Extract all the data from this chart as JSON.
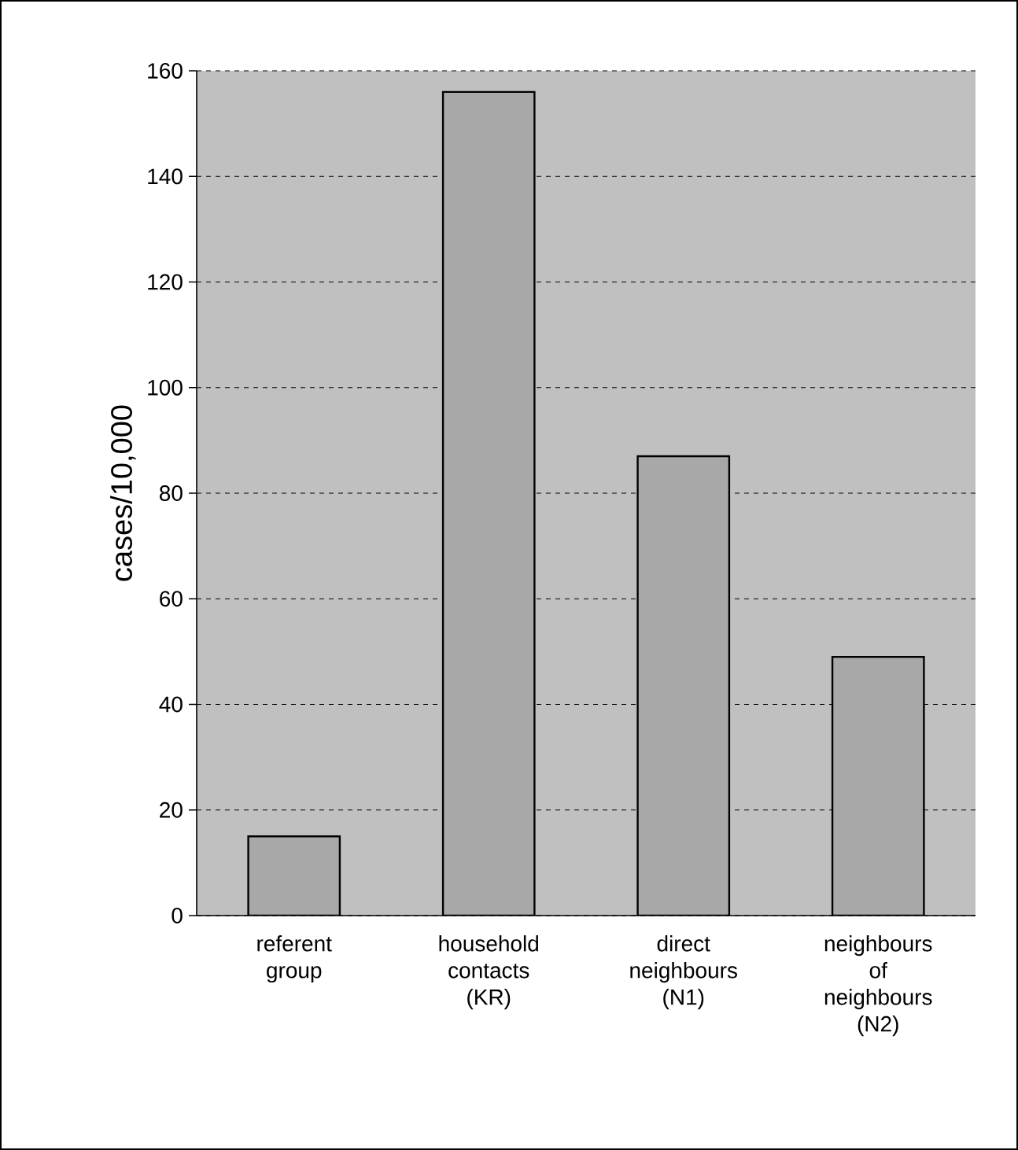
{
  "chart_data": {
    "type": "bar",
    "ylabel": "cases/10,000",
    "categories": [
      "referent group",
      "household contacts (KR)",
      "direct neighbours (N1)",
      "neighbours of neighbours (N2)"
    ],
    "values": [
      15,
      156,
      87,
      49
    ],
    "color": "#a8a8a8",
    "ylim": [
      0,
      160
    ],
    "yticks": [
      0,
      20,
      40,
      60,
      80,
      100,
      120,
      140,
      160
    ],
    "grid": "y"
  }
}
